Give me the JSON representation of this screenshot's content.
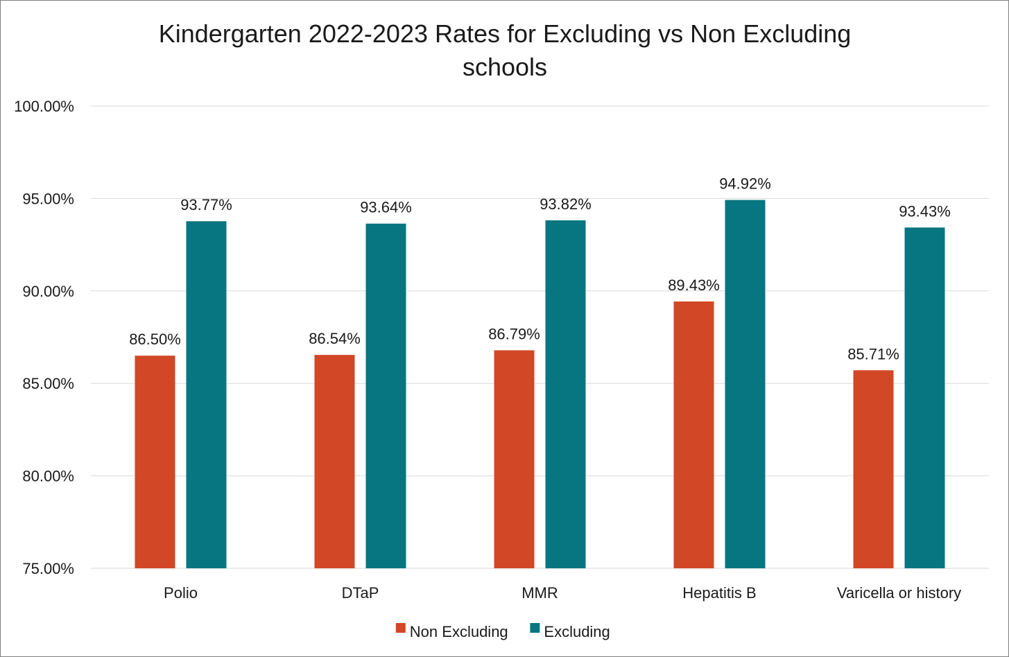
{
  "chart_data": {
    "type": "bar",
    "title_lines": [
      "Kindergarten 2022-2023 Rates for Excluding vs Non Excluding",
      "schools"
    ],
    "categories": [
      "Polio",
      "DTaP",
      "MMR",
      "Hepatitis B",
      "Varicella or history"
    ],
    "series": [
      {
        "name": "Non Excluding",
        "color": "#d24726",
        "values": [
          86.5,
          86.54,
          86.79,
          89.43,
          85.71
        ],
        "labels": [
          "86.50%",
          "86.54%",
          "86.79%",
          "89.43%",
          "85.71%"
        ]
      },
      {
        "name": "Excluding",
        "color": "#077680",
        "values": [
          93.77,
          93.64,
          93.82,
          94.92,
          93.43
        ],
        "labels": [
          "93.77%",
          "93.64%",
          "93.82%",
          "94.92%",
          "93.43%"
        ]
      }
    ],
    "ylim": [
      75,
      100
    ],
    "yticks": [
      75,
      80,
      85,
      90,
      95,
      100
    ],
    "ytick_labels": [
      "75.00%",
      "80.00%",
      "85.00%",
      "90.00%",
      "95.00%",
      "100.00%"
    ],
    "grid": true,
    "legend_position": "bottom",
    "xlabel": "",
    "ylabel": ""
  }
}
